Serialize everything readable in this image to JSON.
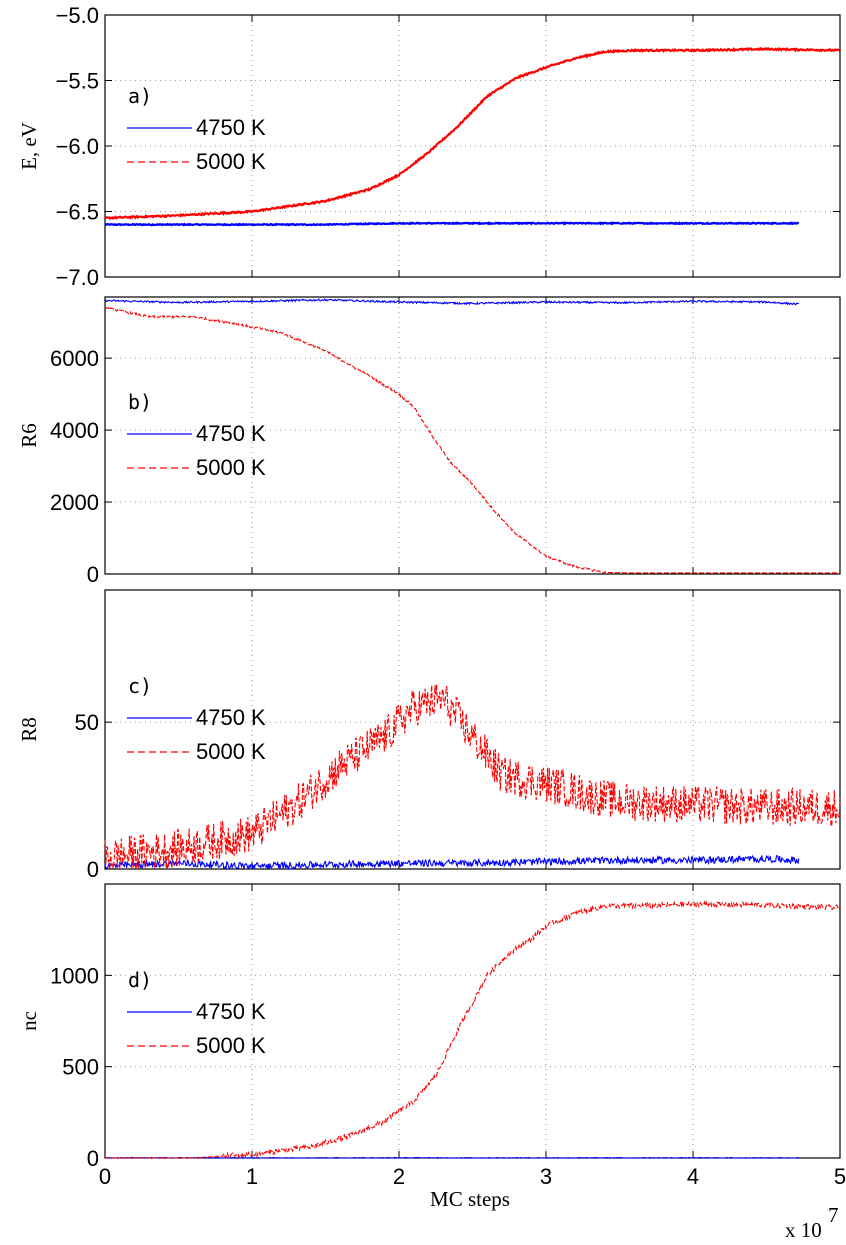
{
  "chart_data": [
    {
      "type": "line",
      "tag": "a)",
      "ylabel": "E, eV",
      "xlim": [
        0,
        5
      ],
      "ylim": [
        -7.0,
        -5.0
      ],
      "yticks": [
        -7.0,
        -6.5,
        -6.0,
        -5.5,
        -5.0
      ],
      "ytick_labels": [
        "−7.0",
        "−6.5",
        "−6.0",
        "−5.5",
        "−5.0"
      ],
      "grid": true,
      "legend_position": "left, below tag",
      "series": [
        {
          "name": "4750 K",
          "color": "#0000ff",
          "style": "solid",
          "x": [
            0,
            0.5,
            1,
            1.5,
            2,
            2.5,
            3,
            3.5,
            4,
            4.5,
            4.72
          ],
          "y": [
            -6.6,
            -6.6,
            -6.6,
            -6.6,
            -6.59,
            -6.59,
            -6.59,
            -6.59,
            -6.59,
            -6.59,
            -6.59
          ]
        },
        {
          "name": "5000 K",
          "color": "#ff0000",
          "style": "dashed",
          "x": [
            0,
            0.5,
            1,
            1.5,
            1.8,
            2,
            2.2,
            2.4,
            2.6,
            2.8,
            3,
            3.2,
            3.4,
            3.6,
            4,
            4.5,
            5
          ],
          "y": [
            -6.55,
            -6.53,
            -6.5,
            -6.42,
            -6.33,
            -6.22,
            -6.05,
            -5.85,
            -5.62,
            -5.48,
            -5.4,
            -5.33,
            -5.28,
            -5.27,
            -5.27,
            -5.26,
            -5.27
          ]
        }
      ]
    },
    {
      "type": "line",
      "tag": "b)",
      "ylabel": "R6",
      "xlim": [
        0,
        5
      ],
      "ylim": [
        0,
        7700
      ],
      "yticks": [
        0,
        2000,
        4000,
        6000
      ],
      "ytick_labels": [
        "0",
        "2000",
        "4000",
        "6000"
      ],
      "grid": true,
      "legend_position": "left, below tag",
      "series": [
        {
          "name": "4750 K",
          "color": "#0000ff",
          "style": "solid",
          "x": [
            0,
            0.5,
            1,
            1.5,
            2,
            2.5,
            3,
            3.5,
            4,
            4.5,
            4.72
          ],
          "y": [
            7600,
            7550,
            7580,
            7620,
            7560,
            7520,
            7560,
            7540,
            7580,
            7560,
            7500
          ]
        },
        {
          "name": "5000 K",
          "color": "#ff0000",
          "style": "dashed",
          "x": [
            0,
            0.3,
            0.6,
            0.9,
            1.2,
            1.5,
            1.8,
            2.0,
            2.1,
            2.2,
            2.35,
            2.5,
            2.65,
            2.8,
            3.0,
            3.2,
            3.4,
            3.6,
            4,
            4.5,
            5
          ],
          "y": [
            7400,
            7150,
            7150,
            6950,
            6700,
            6200,
            5500,
            5000,
            4650,
            4000,
            3100,
            2500,
            1750,
            1100,
            500,
            200,
            40,
            30,
            30,
            30,
            30
          ]
        }
      ]
    },
    {
      "type": "line",
      "tag": "c)",
      "ylabel": "R8",
      "xlim": [
        0,
        5
      ],
      "ylim": [
        0,
        95
      ],
      "yticks": [
        0,
        50
      ],
      "ytick_labels": [
        "0",
        "50"
      ],
      "grid": true,
      "legend_position": "left, below tag",
      "series": [
        {
          "name": "4750 K",
          "color": "#0000ff",
          "style": "solid",
          "x": [
            0,
            0.5,
            1,
            1.5,
            2,
            2.5,
            3,
            3.5,
            4,
            4.5,
            4.72
          ],
          "y": [
            0.5,
            1.5,
            0.5,
            1,
            1.5,
            1.5,
            2,
            2.5,
            2.5,
            3,
            2.5
          ]
        },
        {
          "name": "5000 K",
          "color": "#ff0000",
          "style": "dashed",
          "x": [
            0,
            0.5,
            1,
            1.3,
            1.6,
            1.9,
            2.1,
            2.3,
            2.5,
            2.7,
            2.9,
            3.1,
            3.3,
            3.5,
            4,
            4.5,
            5
          ],
          "y": [
            4,
            7,
            12,
            22,
            35,
            45,
            55,
            58,
            45,
            32,
            30,
            28,
            25,
            23,
            22,
            21,
            21
          ]
        }
      ]
    },
    {
      "type": "line",
      "tag": "d)",
      "ylabel": "nc",
      "xlabel": "MC steps",
      "x_multiplier": "x 10",
      "x_multiplier_exp": "7",
      "xlim": [
        0,
        5
      ],
      "ylim": [
        0,
        1500
      ],
      "xticks": [
        0,
        1,
        2,
        3,
        4,
        5
      ],
      "xtick_labels": [
        "0",
        "1",
        "2",
        "3",
        "4",
        "5"
      ],
      "yticks": [
        0,
        500,
        1000
      ],
      "ytick_labels": [
        "0",
        "500",
        "1000"
      ],
      "grid": true,
      "legend_position": "left, below tag",
      "series": [
        {
          "name": "4750 K",
          "color": "#0000ff",
          "style": "solid",
          "x": [
            0,
            1,
            2,
            3,
            4,
            4.72
          ],
          "y": [
            0,
            0,
            0,
            0,
            0,
            0
          ]
        },
        {
          "name": "5000 K",
          "color": "#ff0000",
          "style": "dashed",
          "x": [
            0,
            0.6,
            1.0,
            1.4,
            1.7,
            1.9,
            2.1,
            2.25,
            2.4,
            2.5,
            2.6,
            2.75,
            2.9,
            3.0,
            3.2,
            3.4,
            3.6,
            4,
            4.5,
            5
          ],
          "y": [
            0,
            0,
            20,
            60,
            130,
            200,
            310,
            450,
            700,
            850,
            1000,
            1120,
            1200,
            1270,
            1340,
            1380,
            1380,
            1390,
            1385,
            1370
          ]
        }
      ]
    }
  ]
}
